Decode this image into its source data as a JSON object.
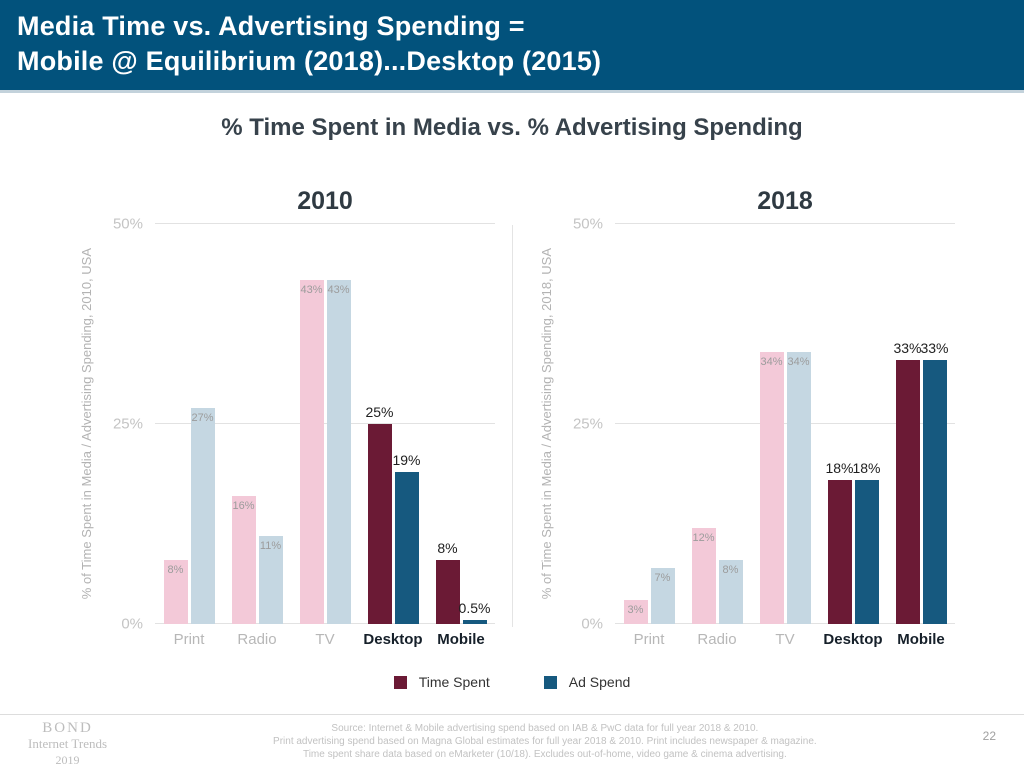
{
  "header": {
    "title_line1": "Media Time vs. Advertising Spending =",
    "title_line2": "Mobile @ Equilibrium (2018)...Desktop (2015)"
  },
  "subtitle": "% Time Spent in Media vs. % Advertising Spending",
  "colors": {
    "header_bg": "#02527C",
    "time_spent_muted": "#F3C9D8",
    "time_spent_strong": "#6B1A35",
    "ad_spend_muted": "#C5D7E2",
    "ad_spend_strong": "#16597F",
    "gridline": "#E2E2E2"
  },
  "chart_data": [
    {
      "type": "bar",
      "title": "2010",
      "ylabel": "% of Time Spent in Media / Advertising Spending, 2010, USA",
      "ylim": [
        0,
        50
      ],
      "yticks": [
        {
          "label": "0%",
          "value": 0
        },
        {
          "label": "25%",
          "value": 25
        },
        {
          "label": "50%",
          "value": 50
        }
      ],
      "categories": [
        "Print",
        "Radio",
        "TV",
        "Desktop",
        "Mobile"
      ],
      "emphasized": [
        false,
        false,
        false,
        true,
        true
      ],
      "series": [
        {
          "name": "Time Spent",
          "values": [
            8,
            16,
            43,
            25,
            8
          ],
          "labels": [
            "8%",
            "16%",
            "43%",
            "25%",
            "8%"
          ]
        },
        {
          "name": "Ad Spend",
          "values": [
            27,
            11,
            43,
            19,
            0.5
          ],
          "labels": [
            "27%",
            "11%",
            "43%",
            "19%",
            "0.5%"
          ]
        }
      ],
      "grid": true,
      "legend_position": "bottom"
    },
    {
      "type": "bar",
      "title": "2018",
      "ylabel": "% of Time Spent in Media / Advertising Spending, 2018, USA",
      "ylim": [
        0,
        50
      ],
      "yticks": [
        {
          "label": "0%",
          "value": 0
        },
        {
          "label": "25%",
          "value": 25
        },
        {
          "label": "50%",
          "value": 50
        }
      ],
      "categories": [
        "Print",
        "Radio",
        "TV",
        "Desktop",
        "Mobile"
      ],
      "emphasized": [
        false,
        false,
        false,
        true,
        true
      ],
      "series": [
        {
          "name": "Time Spent",
          "values": [
            3,
            12,
            34,
            18,
            33
          ],
          "labels": [
            "3%",
            "12%",
            "34%",
            "18%",
            "33%"
          ]
        },
        {
          "name": "Ad Spend",
          "values": [
            7,
            8,
            34,
            18,
            33
          ],
          "labels": [
            "7%",
            "8%",
            "34%",
            "18%",
            "33%"
          ]
        }
      ],
      "grid": true,
      "legend_position": "bottom"
    }
  ],
  "legend": {
    "items": [
      {
        "label": "Time Spent",
        "color": "#6B1A35"
      },
      {
        "label": "Ad Spend",
        "color": "#16597F"
      }
    ]
  },
  "footer": {
    "logo_lines": [
      "BOND",
      "Internet Trends",
      "2019"
    ],
    "source_lines": [
      "Source: Internet & Mobile advertising spend based on IAB & PwC data for full year 2018 & 2010.",
      "Print advertising spend based on Magna Global estimates for full year 2018 & 2010. Print includes newspaper & magazine.",
      "Time spent share data based on eMarketer (10/18). Excludes out-of-home, video game & cinema advertising."
    ],
    "page_number": "22"
  }
}
